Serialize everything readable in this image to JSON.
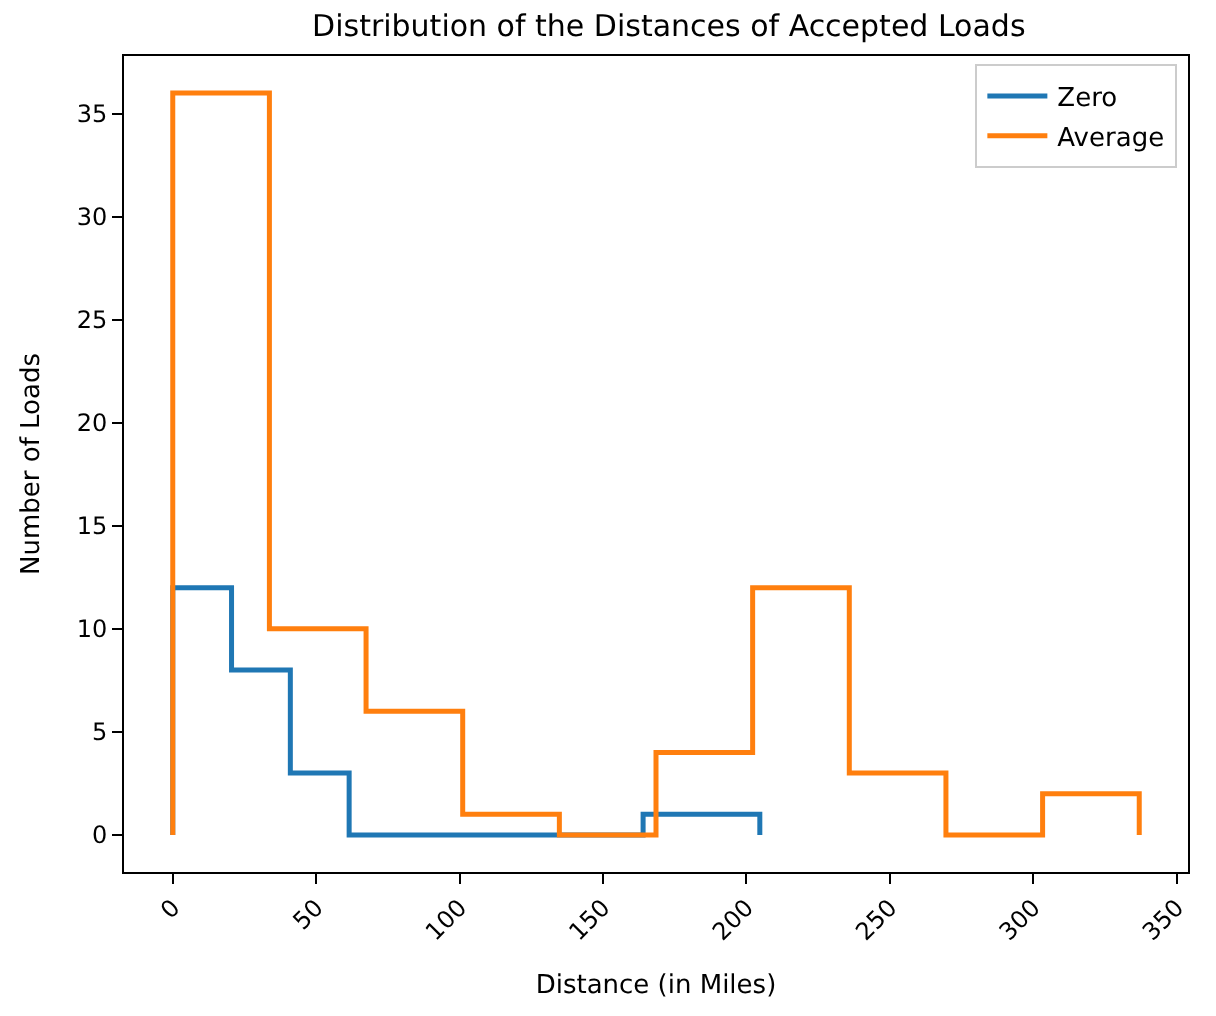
{
  "chart_data": {
    "type": "step",
    "title": "Distribution of the Distances of Accepted Loads",
    "xlabel": "Distance (in Miles)",
    "ylabel": "Number of Loads",
    "series": [
      {
        "name": "Zero",
        "color": "#1f77b4",
        "x": [
          0,
          0,
          20.5,
          41,
          61.5,
          82,
          102.4,
          123,
          143,
          164,
          184,
          204.7
        ],
        "values": [
          0,
          12,
          8,
          3,
          0,
          0,
          0,
          0,
          0,
          1,
          1,
          0
        ]
      },
      {
        "name": "Average",
        "color": "#ff7f0e",
        "x": [
          0,
          0,
          33.7,
          67.4,
          101.1,
          134.8,
          168.5,
          202.2,
          235.9,
          269.6,
          303.3,
          337
        ],
        "values": [
          0,
          36,
          10,
          6,
          1,
          0,
          4,
          12,
          3,
          0,
          2,
          0
        ]
      }
    ],
    "xlim": [
      -17,
      354
    ],
    "xticks": [
      0,
      50,
      100,
      150,
      200,
      250,
      300,
      350
    ],
    "ylim": [
      -1.8,
      37.8
    ],
    "yticks": [
      0,
      5,
      10,
      15,
      20,
      25,
      30,
      35
    ],
    "legend": "top right"
  }
}
